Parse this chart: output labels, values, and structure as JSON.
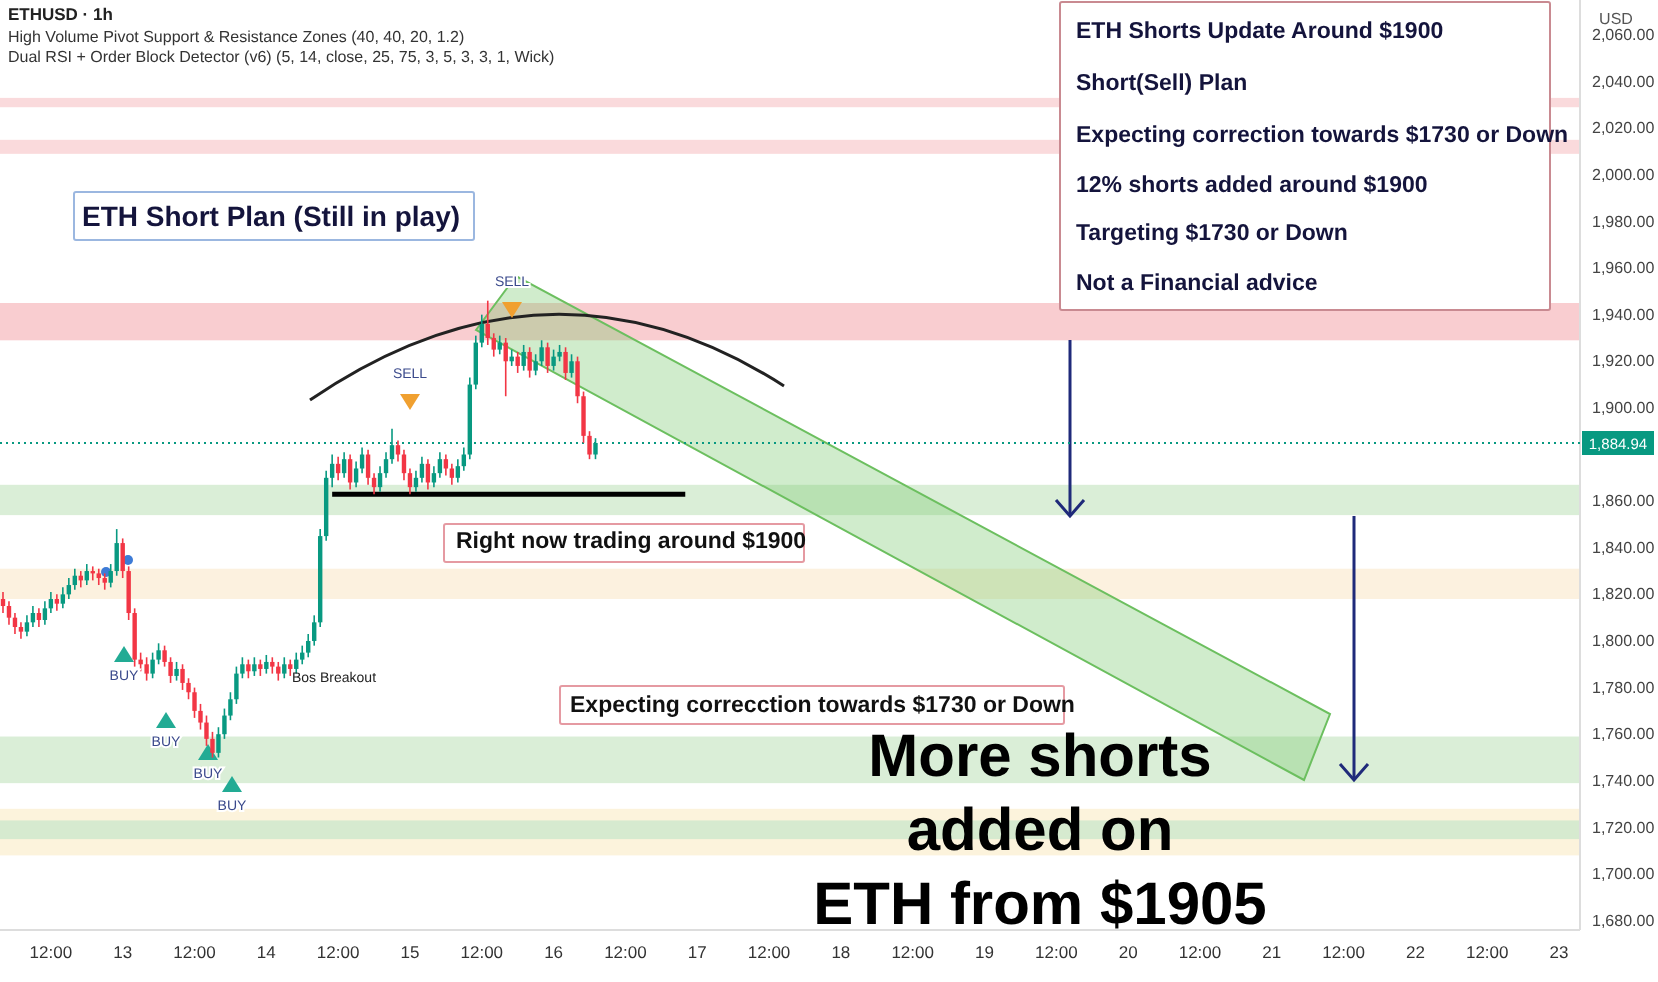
{
  "chart_data": {
    "type": "candlestick",
    "title": "ETHUSD · 1h",
    "ylabel": "USD",
    "categories": [
      null,
      null,
      null,
      null,
      null,
      null,
      null,
      null,
      "12:00",
      null,
      null,
      null,
      null,
      null,
      null,
      null,
      null,
      null,
      null,
      null,
      "13",
      null,
      null,
      null,
      null,
      null,
      null,
      null,
      null,
      null,
      null,
      null,
      "12:00",
      null,
      null,
      null,
      null,
      null,
      null,
      null,
      null,
      null,
      null,
      null,
      "14",
      null,
      null,
      null,
      null,
      null,
      null,
      null,
      null,
      null,
      null,
      null,
      "12:00",
      null,
      null,
      null,
      null,
      null,
      null,
      null,
      null,
      null,
      null,
      null,
      "15",
      null,
      null,
      null,
      null,
      null,
      null,
      null,
      null,
      null,
      null,
      null,
      "12:00",
      null,
      null,
      null,
      null,
      null,
      null,
      null,
      null,
      null,
      null,
      null,
      "16",
      null,
      null,
      null,
      null,
      null,
      null,
      null,
      null,
      null,
      null,
      null,
      "12:00",
      null,
      null,
      null,
      null,
      null,
      null,
      null,
      null,
      null,
      null,
      null,
      "17",
      null,
      null,
      null,
      null,
      null,
      null,
      null,
      null,
      null,
      null,
      null,
      "12:00",
      null,
      null,
      null,
      null,
      null,
      null,
      null,
      null,
      null,
      null,
      null,
      "18",
      null,
      null,
      null,
      null,
      null,
      null,
      null,
      null,
      null,
      null,
      null,
      "12:00",
      null,
      null,
      null,
      null,
      null,
      null,
      null,
      null,
      null,
      null,
      null,
      "19",
      null,
      null,
      null,
      null,
      null,
      null,
      null,
      null,
      null,
      null,
      null,
      "12:00",
      null,
      null,
      null,
      null,
      null,
      null,
      null,
      null,
      null,
      null,
      null,
      "20",
      null,
      null,
      null,
      null,
      null,
      null,
      null,
      null,
      null,
      null,
      null,
      "12:00",
      null,
      null,
      null,
      null,
      null,
      null,
      null,
      null,
      null,
      null,
      null,
      "21",
      null,
      null,
      null,
      null,
      null,
      null,
      null,
      null,
      null,
      null,
      null,
      "12:00",
      null,
      null,
      null,
      null,
      null,
      null,
      null,
      null,
      null,
      null,
      null,
      "22",
      null,
      null,
      null,
      null,
      null,
      null,
      null,
      null,
      null,
      null,
      null,
      "12:00",
      null,
      null,
      null,
      null,
      null,
      null,
      null,
      null,
      null,
      null,
      null,
      "23",
      null,
      null,
      null
    ],
    "ohlc": [
      [
        1818,
        1821,
        1812,
        1815
      ],
      [
        1815,
        1817,
        1807,
        1810
      ],
      [
        1810,
        1812,
        1803,
        1806
      ],
      [
        1806,
        1808,
        1801,
        1804
      ],
      [
        1804,
        1811,
        1802,
        1808
      ],
      [
        1808,
        1815,
        1806,
        1812
      ],
      [
        1812,
        1814,
        1806,
        1809
      ],
      [
        1809,
        1817,
        1807,
        1814
      ],
      [
        1814,
        1821,
        1812,
        1818
      ],
      [
        1818,
        1820,
        1813,
        1816
      ],
      [
        1816,
        1823,
        1814,
        1820
      ],
      [
        1820,
        1827,
        1818,
        1824
      ],
      [
        1824,
        1831,
        1822,
        1828
      ],
      [
        1828,
        1830,
        1823,
        1826
      ],
      [
        1826,
        1833,
        1824,
        1830
      ],
      [
        1830,
        1832,
        1826,
        1829
      ],
      [
        1829,
        1831,
        1824,
        1827
      ],
      [
        1827,
        1829,
        1822,
        1825
      ],
      [
        1825,
        1833,
        1823,
        1830
      ],
      [
        1830,
        1848,
        1828,
        1842
      ],
      [
        1842,
        1844,
        1827,
        1830
      ],
      [
        1830,
        1832,
        1809,
        1812
      ],
      [
        1812,
        1814,
        1789,
        1792
      ],
      [
        1792,
        1795,
        1787,
        1790
      ],
      [
        1790,
        1793,
        1783,
        1786
      ],
      [
        1786,
        1795,
        1784,
        1792
      ],
      [
        1792,
        1799,
        1790,
        1796
      ],
      [
        1796,
        1798,
        1789,
        1791
      ],
      [
        1791,
        1793,
        1782,
        1785
      ],
      [
        1785,
        1791,
        1783,
        1788
      ],
      [
        1788,
        1790,
        1779,
        1782
      ],
      [
        1782,
        1784,
        1775,
        1778
      ],
      [
        1778,
        1780,
        1767,
        1770
      ],
      [
        1770,
        1773,
        1762,
        1765
      ],
      [
        1765,
        1768,
        1755,
        1758
      ],
      [
        1758,
        1761,
        1750,
        1752
      ],
      [
        1752,
        1763,
        1750,
        1760
      ],
      [
        1760,
        1771,
        1758,
        1768
      ],
      [
        1768,
        1778,
        1766,
        1775
      ],
      [
        1775,
        1789,
        1773,
        1786
      ],
      [
        1786,
        1793,
        1784,
        1790
      ],
      [
        1790,
        1792,
        1784,
        1787
      ],
      [
        1787,
        1793,
        1785,
        1790
      ],
      [
        1790,
        1792,
        1785,
        1788
      ],
      [
        1788,
        1794,
        1786,
        1791
      ],
      [
        1791,
        1793,
        1786,
        1789
      ],
      [
        1789,
        1791,
        1783,
        1786
      ],
      [
        1786,
        1793,
        1784,
        1790
      ],
      [
        1790,
        1792,
        1785,
        1788
      ],
      [
        1788,
        1795,
        1786,
        1792
      ],
      [
        1792,
        1798,
        1790,
        1795
      ],
      [
        1795,
        1803,
        1793,
        1800
      ],
      [
        1800,
        1811,
        1798,
        1808
      ],
      [
        1808,
        1848,
        1806,
        1845
      ],
      [
        1845,
        1873,
        1843,
        1870
      ],
      [
        1870,
        1880,
        1866,
        1876
      ],
      [
        1876,
        1879,
        1869,
        1872
      ],
      [
        1872,
        1881,
        1870,
        1878
      ],
      [
        1878,
        1880,
        1865,
        1868
      ],
      [
        1868,
        1877,
        1866,
        1874
      ],
      [
        1874,
        1883,
        1872,
        1880
      ],
      [
        1880,
        1882,
        1867,
        1870
      ],
      [
        1870,
        1872,
        1863,
        1866
      ],
      [
        1866,
        1875,
        1864,
        1872
      ],
      [
        1872,
        1881,
        1870,
        1878
      ],
      [
        1878,
        1891,
        1876,
        1884
      ],
      [
        1884,
        1886,
        1877,
        1880
      ],
      [
        1880,
        1882,
        1869,
        1872
      ],
      [
        1872,
        1874,
        1863,
        1866
      ],
      [
        1866,
        1873,
        1864,
        1870
      ],
      [
        1870,
        1879,
        1868,
        1876
      ],
      [
        1876,
        1878,
        1865,
        1868
      ],
      [
        1868,
        1875,
        1866,
        1872
      ],
      [
        1872,
        1881,
        1870,
        1878
      ],
      [
        1878,
        1880,
        1871,
        1874
      ],
      [
        1874,
        1876,
        1867,
        1870
      ],
      [
        1870,
        1878,
        1868,
        1875
      ],
      [
        1875,
        1883,
        1873,
        1880
      ],
      [
        1880,
        1913,
        1878,
        1910
      ],
      [
        1910,
        1931,
        1908,
        1928
      ],
      [
        1928,
        1940,
        1926,
        1936
      ],
      [
        1936,
        1946,
        1927,
        1930
      ],
      [
        1930,
        1932,
        1922,
        1925
      ],
      [
        1925,
        1931,
        1923,
        1928
      ],
      [
        1928,
        1930,
        1905,
        1920
      ],
      [
        1920,
        1925,
        1918,
        1922
      ],
      [
        1922,
        1924,
        1915,
        1918
      ],
      [
        1918,
        1927,
        1916,
        1924
      ],
      [
        1924,
        1926,
        1913,
        1916
      ],
      [
        1916,
        1923,
        1914,
        1920
      ],
      [
        1920,
        1929,
        1918,
        1926
      ],
      [
        1926,
        1928,
        1915,
        1918
      ],
      [
        1918,
        1925,
        1916,
        1922
      ],
      [
        1922,
        1927,
        1920,
        1924
      ],
      [
        1924,
        1926,
        1912,
        1915
      ],
      [
        1915,
        1923,
        1913,
        1920
      ],
      [
        1920,
        1922,
        1902,
        1905
      ],
      [
        1905,
        1907,
        1885,
        1888
      ],
      [
        1888,
        1890,
        1878,
        1880
      ],
      [
        1880,
        1887,
        1878,
        1884.94
      ],
      null,
      null,
      null,
      null,
      null,
      null,
      null,
      null,
      null,
      null,
      null,
      null,
      null,
      null,
      null,
      null,
      null,
      null,
      null,
      null,
      null,
      null,
      null,
      null,
      null,
      null,
      null,
      null,
      null,
      null,
      null,
      null,
      null,
      null,
      null,
      null,
      null,
      null,
      null,
      null,
      null,
      null,
      null,
      null,
      null,
      null,
      null,
      null,
      null,
      null,
      null,
      null,
      null,
      null,
      null,
      null,
      null,
      null,
      null,
      null,
      null,
      null,
      null,
      null,
      null,
      null,
      null,
      null,
      null,
      null,
      null,
      null,
      null,
      null,
      null,
      null,
      null,
      null,
      null,
      null,
      null,
      null,
      null,
      null,
      null,
      null,
      null,
      null,
      null,
      null,
      null,
      null,
      null,
      null,
      null,
      null,
      null,
      null,
      null,
      null,
      null,
      null,
      null,
      null,
      null,
      null,
      null,
      null,
      null,
      null,
      null,
      null,
      null,
      null,
      null,
      null,
      null,
      null,
      null,
      null,
      null,
      null,
      null,
      null,
      null,
      null,
      null,
      null,
      null,
      null,
      null,
      null,
      null,
      null,
      null,
      null,
      null,
      null,
      null,
      null,
      null,
      null,
      null,
      null,
      null,
      null,
      null,
      null,
      null,
      null,
      null,
      null,
      null,
      null,
      null,
      null,
      null,
      null,
      null,
      null,
      null,
      null,
      null,
      null
    ],
    "series": [
      {
        "type": "line",
        "color": "#000000",
        "values": [
          null,
          null,
          null,
          null,
          null,
          null,
          null,
          null,
          null,
          null,
          null,
          null,
          null,
          null,
          null,
          null,
          null,
          null,
          null,
          null,
          null,
          null,
          null,
          null,
          null,
          null,
          null,
          null,
          null,
          null,
          null,
          null,
          null,
          null,
          null,
          null,
          null,
          null,
          null,
          null,
          null,
          null,
          null,
          null,
          null,
          null,
          null,
          null,
          null,
          null,
          null,
          null,
          null,
          null,
          null,
          1863,
          1863,
          1863,
          1863,
          1863,
          1863,
          1863,
          1863,
          1863,
          1863,
          1863,
          1863,
          1863,
          1863,
          1863,
          1863,
          1863,
          1863,
          1863,
          1863,
          1863,
          1863,
          1863,
          1863,
          1863,
          1863,
          1863,
          1863,
          1863,
          1863,
          1863,
          1863,
          1863,
          1863,
          1863,
          1863,
          1863,
          1863,
          1863,
          1863,
          1863,
          1863,
          1863,
          1863,
          1863,
          1863,
          1863,
          1863,
          1863,
          1863,
          1863,
          1863,
          1863,
          1863,
          1863,
          1863,
          1863,
          1863,
          1863,
          1863,
          null,
          null,
          null,
          null,
          null,
          null,
          null,
          null,
          null,
          null,
          null,
          null,
          null,
          null,
          null,
          null,
          null,
          null,
          null,
          null,
          null,
          null,
          null,
          null,
          null,
          null,
          null,
          null,
          null,
          null,
          null,
          null,
          null,
          null,
          null,
          null,
          null,
          null,
          null,
          null,
          null,
          null,
          null,
          null,
          null,
          null,
          null,
          null,
          null,
          null,
          null,
          null,
          null,
          null,
          null,
          null,
          null,
          null,
          null,
          null,
          null,
          null,
          null,
          null,
          null,
          null,
          null,
          null,
          null,
          null,
          null,
          null,
          null,
          null,
          null,
          null,
          null,
          null,
          null,
          null,
          null,
          null,
          null,
          null,
          null,
          null,
          null,
          null,
          null,
          null,
          null,
          null,
          null,
          null,
          null,
          null,
          null,
          null,
          null,
          null,
          null,
          null,
          null,
          null,
          null,
          null,
          null,
          null,
          null,
          null,
          null,
          null,
          null,
          null,
          null,
          null,
          null,
          null,
          null,
          null,
          null,
          null,
          null,
          null,
          null,
          null,
          null,
          null,
          null,
          null,
          null,
          null,
          null,
          null,
          null,
          null,
          null,
          null,
          null,
          null,
          null,
          null,
          null,
          null,
          null,
          null,
          null,
          null,
          null
        ]
      }
    ],
    "ylim": [
      1676,
      2075
    ],
    "yticks": [
      {
        "value": 1680,
        "label": "1,680.00"
      },
      {
        "value": 1700,
        "label": "1,700.00"
      },
      {
        "value": 1720,
        "label": "1,720.00"
      },
      {
        "value": 1740,
        "label": "1,740.00"
      },
      {
        "value": 1760,
        "label": "1,760.00"
      },
      {
        "value": 1780,
        "label": "1,780.00"
      },
      {
        "value": 1800,
        "label": "1,800.00"
      },
      {
        "value": 1820,
        "label": "1,820.00"
      },
      {
        "value": 1840,
        "label": "1,840.00"
      },
      {
        "value": 1860,
        "label": "1,860.00"
      },
      {
        "value": 1900,
        "label": "1,900.00"
      },
      {
        "value": 1920,
        "label": "1,920.00"
      },
      {
        "value": 1940,
        "label": "1,940.00"
      },
      {
        "value": 1960,
        "label": "1,960.00"
      },
      {
        "value": 1980,
        "label": "1,980.00"
      },
      {
        "value": 2000,
        "label": "2,000.00"
      },
      {
        "value": 2020,
        "label": "2,020.00"
      },
      {
        "value": 2040,
        "label": "2,040.00"
      },
      {
        "value": 2060,
        "label": "2,060.00"
      }
    ],
    "bands": [
      {
        "axis": "y",
        "from": 2029,
        "to": 2033,
        "color": "#f9d3d6"
      },
      {
        "axis": "y",
        "from": 2009,
        "to": 2015,
        "color": "#f9d3d6"
      },
      {
        "axis": "y",
        "from": 1929,
        "to": 1945,
        "color": "#f8c4c8"
      },
      {
        "axis": "y",
        "from": 1854,
        "to": 1867,
        "color": "#d3ebd0"
      },
      {
        "axis": "y",
        "from": 1818,
        "to": 1831,
        "color": "#fcefd9"
      },
      {
        "axis": "y",
        "from": 1739,
        "to": 1759,
        "color": "#d3ebd0"
      },
      {
        "axis": "y",
        "from": 1708,
        "to": 1728,
        "color": "#fbf1d6"
      },
      {
        "axis": "y",
        "from": 1715,
        "to": 1723,
        "color": "#cfe8cc"
      }
    ],
    "ref_lines": [
      {
        "axis": "y",
        "value": 1884.94,
        "label": "1,884.94",
        "color": "#089981",
        "line_style": "dotted"
      }
    ],
    "annotations": [
      "High Volume Pivot Support & Resistance Zones (40, 40, 20, 1.2)",
      "Dual RSI + Order Block Detector (v6) (5, 14, close, 25, 75, 3, 5, 3, 3, 1, Wick)",
      "ETH Short Plan (Still in play)",
      "Right now trading around $1900",
      "Expecting correcction towards $1730 or Down",
      "ETH Shorts Update Around $1900",
      "Short(Sell) Plan",
      "Expecting correction towards $1730 or Down",
      "12% shorts added around $1900",
      "Targeting $1730 or Down",
      "Not a Financial advice",
      "More shorts added on ETH from $1905",
      "SELL",
      "SELL",
      "BUY",
      "BUY",
      "BUY",
      "BUY",
      "Bos Breakout"
    ]
  }
}
